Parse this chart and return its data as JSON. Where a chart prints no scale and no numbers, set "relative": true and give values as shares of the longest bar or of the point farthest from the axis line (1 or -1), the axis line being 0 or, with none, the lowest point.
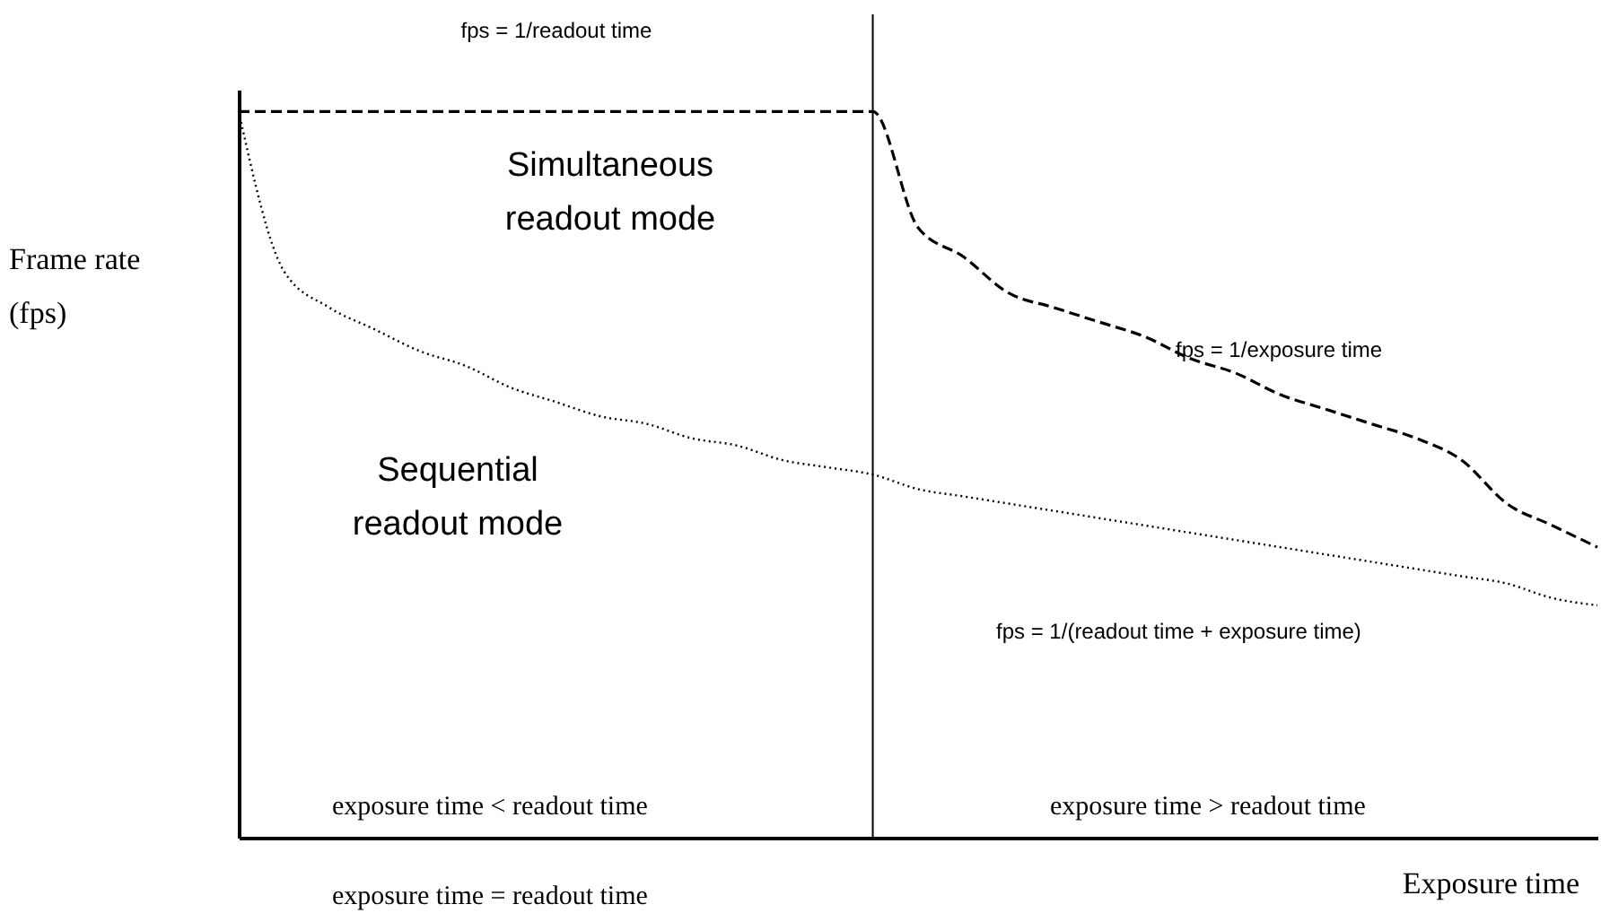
{
  "chart_data": {
    "type": "line",
    "relative": true,
    "xlabel": "Exposure time",
    "ylabel": "Frame rate (fps)",
    "legend": false,
    "grid": false,
    "tick_labels": false,
    "categories": [
      null,
      null,
      null,
      null,
      null,
      null,
      null,
      null,
      null,
      null,
      null,
      null,
      null,
      null,
      null,
      null,
      null,
      null,
      null,
      null,
      null,
      null,
      null,
      null,
      null,
      null,
      null,
      null,
      null,
      null,
      null
    ],
    "series": [
      {
        "name": "Simultaneous readout mode",
        "color": "#000000",
        "line_style": "dashed",
        "values": [
          1,
          1,
          1,
          1,
          1,
          1,
          1,
          1,
          1,
          1,
          1,
          1,
          1,
          1,
          1,
          0.84,
          0.8,
          0.75,
          0.73,
          0.71,
          0.69,
          0.66,
          0.64,
          0.61,
          0.59,
          0.57,
          0.55,
          0.52,
          0.46,
          0.43,
          0.4
        ]
      },
      {
        "name": "Sequential readout mode",
        "color": "#000000",
        "line_style": "dotted",
        "values": [
          1,
          0.78,
          0.73,
          0.7,
          0.67,
          0.65,
          0.62,
          0.6,
          0.58,
          0.57,
          0.55,
          0.54,
          0.52,
          0.51,
          0.5,
          0.48,
          0.47,
          0.46,
          0.45,
          0.44,
          0.43,
          0.42,
          0.41,
          0.4,
          0.39,
          0.38,
          0.37,
          0.36,
          0.35,
          0.33,
          0.32
        ]
      }
    ],
    "annotations": [
      "fps = 1/readout time",
      "fps = 1/exposure time",
      "fps = 1/(readout time + exposure time)",
      "exposure time < readout time",
      "exposure time > readout time",
      "exposure time = readout time"
    ]
  }
}
